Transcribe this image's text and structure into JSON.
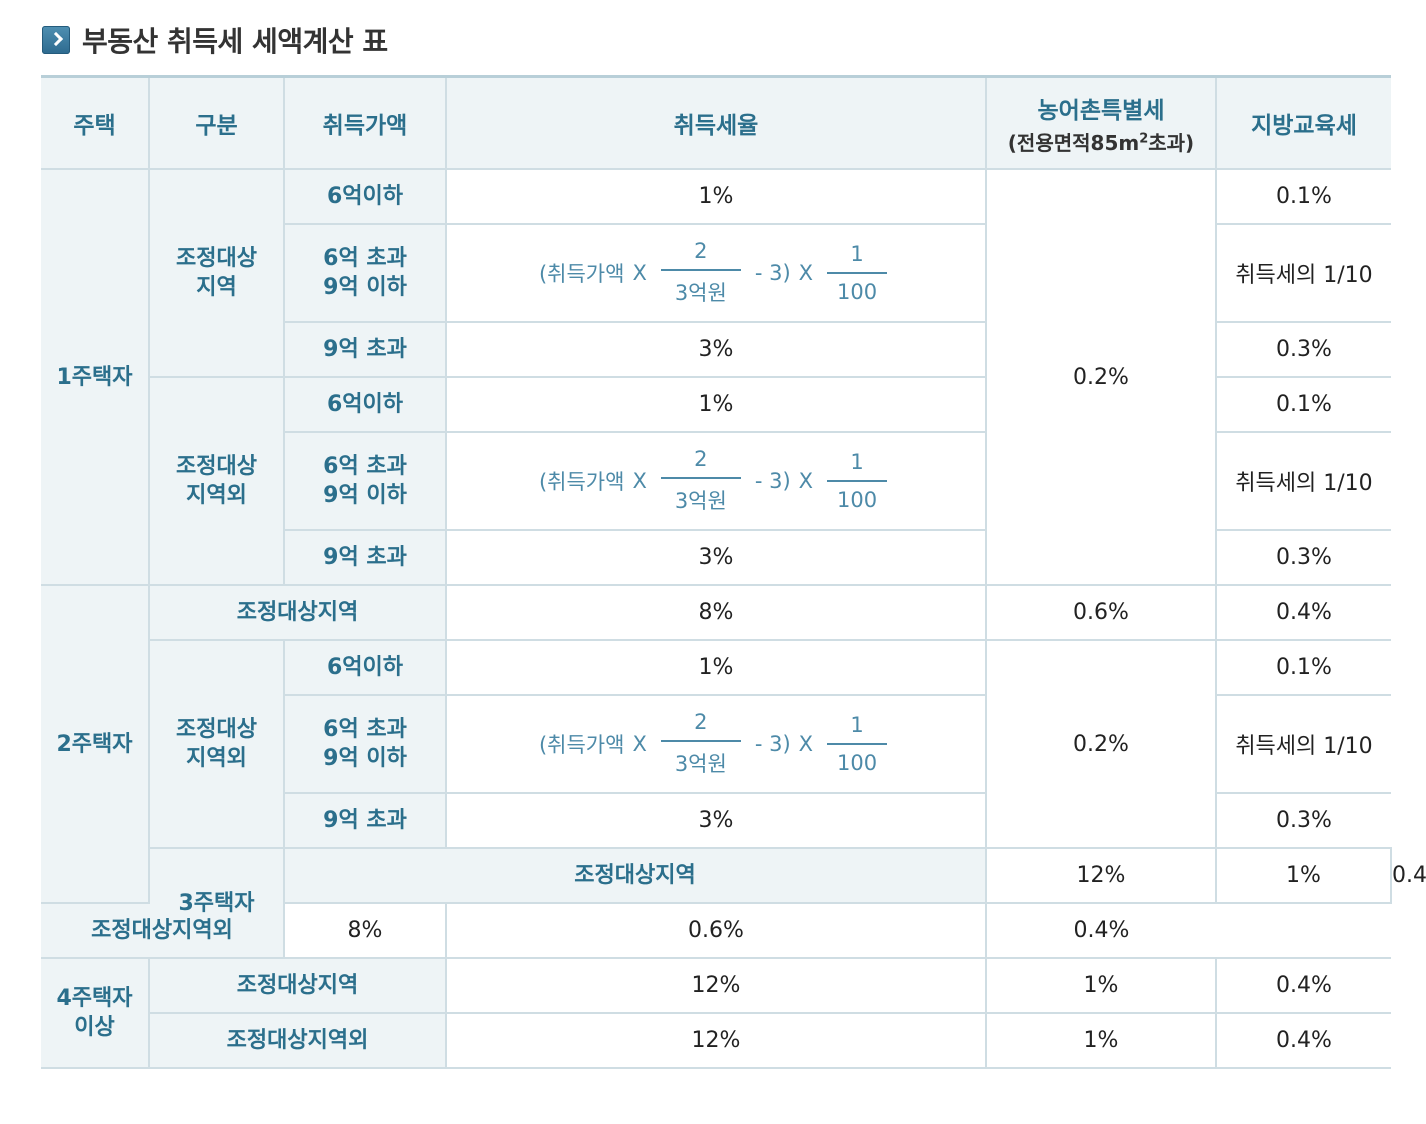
{
  "title": "부동산 취득세 세액계산 표",
  "icon": "chevron-right-icon",
  "colors": {
    "header_bg": "#eef4f6",
    "header_text": "#2b6f8c",
    "border": "#cfdde3",
    "formula": "#4d8aa8"
  },
  "headers": {
    "house": "주택",
    "category": "구분",
    "price": "취득가액",
    "rate": "취득세율",
    "rural_tax": "농어촌특별세",
    "rural_tax_sub_pre": "(전용면적85m",
    "rural_tax_sub_sup": "2",
    "rural_tax_sub_post": "초과)",
    "edu_tax": "지방교육세"
  },
  "formula": {
    "open": "(취득가액",
    "times": "X",
    "num1": "2",
    "den1": "3억원",
    "minus": "- 3)",
    "num2": "1",
    "den2": "100"
  },
  "rows": {
    "one": "1주택자",
    "two": "2주택자",
    "three": "3주택자",
    "four": "4주택자\n이상",
    "adj": "조정대상\n지역",
    "nonadj": "조정대상\n지역외",
    "adj_full": "조정대상지역",
    "nonadj_full": "조정대상지역외",
    "p1": "6억이하",
    "p2": "6억 초과\n9억 이하",
    "p3": "9억 초과"
  },
  "values": {
    "r1": "1%",
    "r3": "3%",
    "r8": "8%",
    "r12": "12%",
    "rural_02": "0.2%",
    "rural_06": "0.6%",
    "rural_1": "1%",
    "edu_01": "0.1%",
    "edu_formula": "취득세의 1/10",
    "edu_03": "0.3%",
    "edu_04": "0.4%"
  }
}
